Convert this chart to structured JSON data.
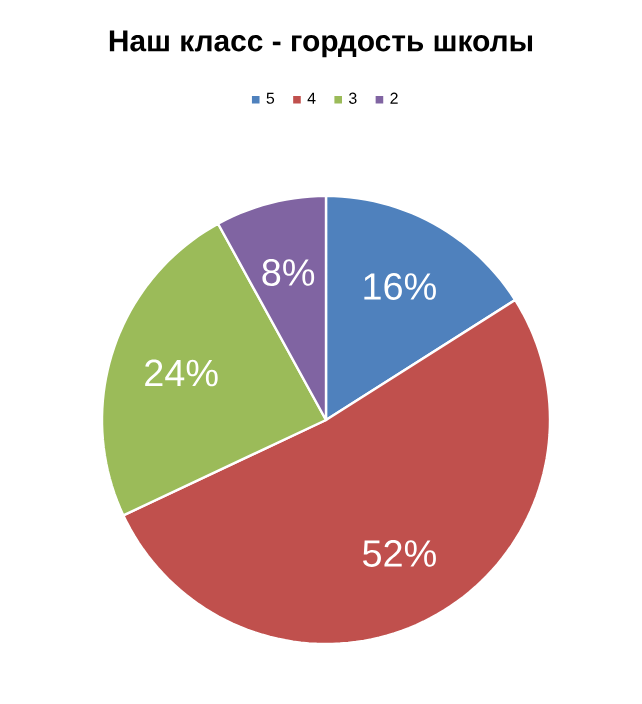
{
  "chart_data": {
    "type": "pie",
    "title": "Наш класс - гордость школы",
    "categories": [
      "5",
      "4",
      "3",
      "2"
    ],
    "values": [
      16,
      52,
      24,
      8
    ],
    "colors": [
      "#4f81bd",
      "#c0504d",
      "#9bbb59",
      "#8064a2"
    ],
    "value_labels": [
      "16%",
      "52%",
      "24%",
      "8%"
    ],
    "legend": "top"
  }
}
